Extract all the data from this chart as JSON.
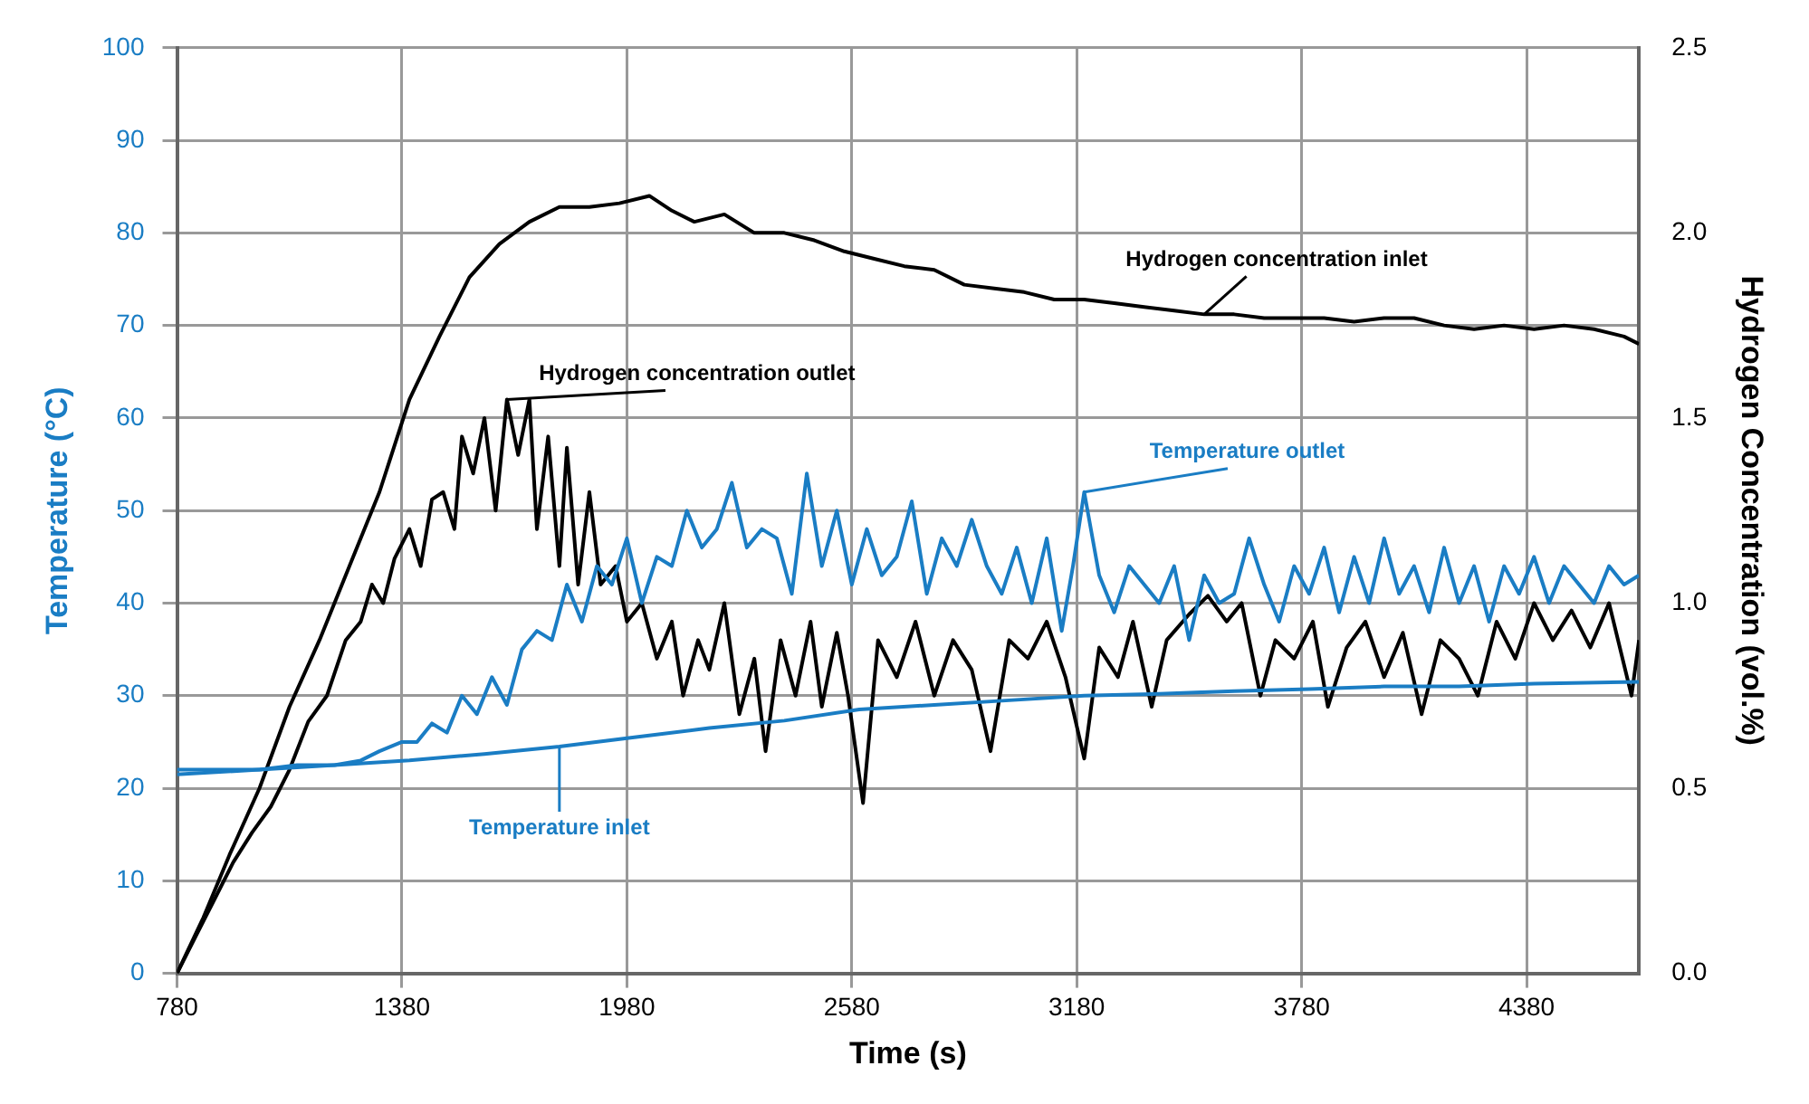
{
  "chart_data": {
    "type": "line",
    "xlabel": "Time (s)",
    "ylabel": "Temperature (°C)",
    "y2label": "Hydrogen Concentration (vol.%)",
    "xlim": [
      780,
      4680
    ],
    "xticks": [
      780,
      1380,
      1980,
      2580,
      3180,
      3780,
      4380
    ],
    "ylim": [
      0,
      100
    ],
    "yticks": [
      0,
      10,
      20,
      30,
      40,
      50,
      60,
      70,
      80,
      90,
      100
    ],
    "y2lim": [
      0,
      2.5
    ],
    "y2ticks": [
      {
        "value": 0,
        "label": "0.0"
      },
      {
        "value": 0.5,
        "label": "0.5"
      },
      {
        "value": 1,
        "label": "1.0"
      },
      {
        "value": 1.5,
        "label": "1.5"
      },
      {
        "value": 2,
        "label": "2.0"
      },
      {
        "value": 2.5,
        "label": "2.5"
      }
    ],
    "grid": true,
    "legend": false,
    "marker": "none",
    "line_style": "solid",
    "series": [
      {
        "name": "Temperature inlet",
        "color": "#1a7dc4",
        "x": [
          780,
          1000,
          1200,
          1400,
          1600,
          1800,
          2000,
          2200,
          2400,
          2600,
          2800,
          3000,
          3200,
          3400,
          3600,
          3800,
          4000,
          4200,
          4400,
          4680
        ],
        "values": [
          21.5,
          22,
          22.5,
          23,
          23.7,
          24.5,
          25.5,
          26.5,
          27.3,
          28.5,
          29,
          29.5,
          30,
          30.2,
          30.5,
          30.7,
          31,
          31,
          31.3,
          31.5
        ]
      },
      {
        "name": "Temperature outlet",
        "color": "#1a7dc4",
        "x": [
          780,
          900,
          1000,
          1100,
          1200,
          1270,
          1320,
          1380,
          1420,
          1460,
          1500,
          1540,
          1580,
          1620,
          1660,
          1700,
          1740,
          1780,
          1820,
          1860,
          1900,
          1940,
          1980,
          2020,
          2060,
          2100,
          2140,
          2180,
          2220,
          2260,
          2300,
          2340,
          2380,
          2420,
          2460,
          2500,
          2540,
          2580,
          2620,
          2660,
          2700,
          2740,
          2780,
          2820,
          2860,
          2900,
          2940,
          2980,
          3020,
          3060,
          3100,
          3140,
          3170,
          3200,
          3240,
          3280,
          3320,
          3360,
          3400,
          3440,
          3480,
          3520,
          3560,
          3600,
          3640,
          3680,
          3720,
          3760,
          3800,
          3840,
          3880,
          3920,
          3960,
          4000,
          4040,
          4080,
          4120,
          4160,
          4200,
          4240,
          4280,
          4320,
          4360,
          4400,
          4440,
          4480,
          4520,
          4560,
          4600,
          4640,
          4680
        ],
        "values": [
          22,
          22,
          22,
          22.5,
          22.5,
          23,
          24,
          25,
          25,
          27,
          26,
          30,
          28,
          32,
          29,
          35,
          37,
          36,
          42,
          38,
          44,
          42,
          47,
          40,
          45,
          44,
          50,
          46,
          48,
          53,
          46,
          48,
          47,
          41,
          54,
          44,
          50,
          42,
          48,
          43,
          45,
          51,
          41,
          47,
          44,
          49,
          44,
          41,
          46,
          40,
          47,
          37,
          44,
          52,
          43,
          39,
          44,
          42,
          40,
          44,
          36,
          43,
          40,
          41,
          47,
          42,
          38,
          44,
          41,
          46,
          39,
          45,
          40,
          47,
          41,
          44,
          39,
          46,
          40,
          44,
          38,
          44,
          41,
          45,
          40,
          44,
          42,
          40,
          44,
          42,
          43
        ]
      },
      {
        "name": "Hydrogen concentration inlet",
        "color": "#000000",
        "axis": "y2",
        "x": [
          780,
          850,
          920,
          1000,
          1080,
          1160,
          1240,
          1320,
          1400,
          1480,
          1560,
          1640,
          1720,
          1800,
          1880,
          1960,
          2040,
          2100,
          2160,
          2240,
          2320,
          2400,
          2480,
          2560,
          2640,
          2720,
          2800,
          2880,
          2960,
          3040,
          3120,
          3200,
          3280,
          3360,
          3440,
          3520,
          3600,
          3680,
          3760,
          3840,
          3920,
          4000,
          4080,
          4160,
          4240,
          4320,
          4400,
          4480,
          4560,
          4640,
          4680
        ],
        "values": [
          0,
          0.15,
          0.32,
          0.5,
          0.72,
          0.9,
          1.1,
          1.3,
          1.55,
          1.72,
          1.88,
          1.97,
          2.03,
          2.07,
          2.07,
          2.08,
          2.1,
          2.06,
          2.03,
          2.05,
          2,
          2,
          1.98,
          1.95,
          1.93,
          1.91,
          1.9,
          1.86,
          1.85,
          1.84,
          1.82,
          1.82,
          1.81,
          1.8,
          1.79,
          1.78,
          1.78,
          1.77,
          1.77,
          1.77,
          1.76,
          1.77,
          1.77,
          1.75,
          1.74,
          1.75,
          1.74,
          1.75,
          1.74,
          1.72,
          1.7
        ]
      },
      {
        "name": "Hydrogen concentration outlet",
        "color": "#000000",
        "axis": "y2",
        "x": [
          780,
          830,
          880,
          930,
          980,
          1030,
          1080,
          1130,
          1180,
          1230,
          1270,
          1300,
          1330,
          1360,
          1400,
          1430,
          1460,
          1490,
          1520,
          1540,
          1570,
          1600,
          1630,
          1660,
          1690,
          1720,
          1740,
          1770,
          1800,
          1820,
          1850,
          1880,
          1910,
          1950,
          1980,
          2020,
          2060,
          2100,
          2130,
          2170,
          2200,
          2240,
          2280,
          2320,
          2350,
          2390,
          2430,
          2470,
          2500,
          2540,
          2570,
          2610,
          2650,
          2700,
          2750,
          2800,
          2850,
          2900,
          2950,
          3000,
          3050,
          3100,
          3150,
          3200,
          3240,
          3290,
          3330,
          3380,
          3420,
          3480,
          3530,
          3580,
          3620,
          3670,
          3710,
          3760,
          3810,
          3850,
          3900,
          3950,
          4000,
          4050,
          4100,
          4150,
          4200,
          4250,
          4300,
          4350,
          4400,
          4450,
          4500,
          4550,
          4600,
          4660,
          4680
        ],
        "values": [
          0,
          0.1,
          0.2,
          0.3,
          0.38,
          0.45,
          0.55,
          0.68,
          0.75,
          0.9,
          0.95,
          1.05,
          1,
          1.12,
          1.2,
          1.1,
          1.28,
          1.3,
          1.2,
          1.45,
          1.35,
          1.5,
          1.25,
          1.55,
          1.4,
          1.55,
          1.2,
          1.45,
          1.1,
          1.42,
          1.05,
          1.3,
          1.05,
          1.1,
          0.95,
          1,
          0.85,
          0.95,
          0.75,
          0.9,
          0.82,
          1,
          0.7,
          0.85,
          0.6,
          0.9,
          0.75,
          0.95,
          0.72,
          0.92,
          0.75,
          0.46,
          0.9,
          0.8,
          0.95,
          0.75,
          0.9,
          0.82,
          0.6,
          0.9,
          0.85,
          0.95,
          0.8,
          0.58,
          0.88,
          0.8,
          0.95,
          0.72,
          0.9,
          0.97,
          1.02,
          0.95,
          1,
          0.75,
          0.9,
          0.85,
          0.95,
          0.72,
          0.88,
          0.95,
          0.8,
          0.92,
          0.7,
          0.9,
          0.85,
          0.75,
          0.95,
          0.85,
          1,
          0.9,
          0.98,
          0.88,
          1,
          0.75,
          0.9
        ]
      }
    ]
  }
}
